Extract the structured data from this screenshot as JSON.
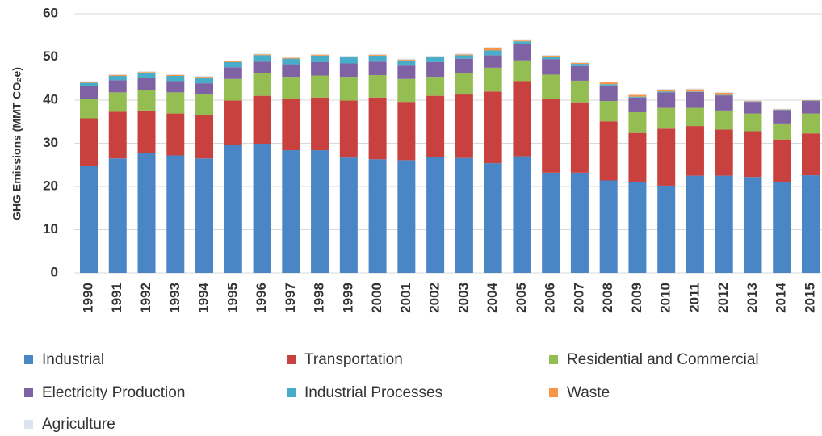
{
  "chart_data": {
    "type": "stacked_bar",
    "y_label": "GHG Emissions (MMT CO₂e)",
    "categories": [
      "1990",
      "1991",
      "1992",
      "1993",
      "1994",
      "1995",
      "1996",
      "1997",
      "1998",
      "1999",
      "2000",
      "2001",
      "2002",
      "2003",
      "2004",
      "2005",
      "2006",
      "2007",
      "2008",
      "2009",
      "2010",
      "2011",
      "2012",
      "2013",
      "2014",
      "2015"
    ],
    "series": [
      {
        "name": "Industrial",
        "color": "#4a85c6",
        "values": [
          24.8,
          26.5,
          27.7,
          27.2,
          26.5,
          29.6,
          29.9,
          28.4,
          28.4,
          26.7,
          26.3,
          26.1,
          26.9,
          26.6,
          25.4,
          27.0,
          23.2,
          23.2,
          21.4,
          21.1,
          20.2,
          22.5,
          22.5,
          22.2,
          21.0,
          22.6
        ]
      },
      {
        "name": "Transportation",
        "color": "#c9413f",
        "values": [
          11.0,
          10.8,
          9.9,
          9.7,
          10.1,
          10.3,
          11.1,
          11.9,
          12.2,
          13.2,
          14.3,
          13.5,
          14.1,
          14.7,
          16.6,
          17.4,
          17.1,
          16.3,
          13.7,
          11.3,
          13.2,
          11.5,
          10.7,
          10.6,
          9.9,
          9.7
        ]
      },
      {
        "name": "Residential and Commercial",
        "color": "#94bd52",
        "values": [
          4.4,
          4.5,
          4.7,
          4.9,
          4.8,
          5.0,
          5.2,
          5.1,
          5.1,
          5.5,
          5.2,
          5.3,
          4.4,
          5.0,
          5.5,
          4.8,
          5.6,
          5.0,
          4.7,
          4.8,
          4.8,
          4.2,
          4.4,
          4.1,
          3.7,
          4.6
        ]
      },
      {
        "name": "Electricity Production",
        "color": "#7f62a3",
        "values": [
          3.0,
          2.8,
          2.8,
          2.6,
          2.5,
          2.7,
          2.7,
          2.9,
          3.1,
          3.1,
          3.1,
          3.1,
          3.4,
          3.3,
          2.9,
          3.7,
          3.6,
          3.4,
          3.6,
          3.4,
          3.6,
          3.7,
          3.5,
          2.7,
          3.1,
          2.9
        ]
      },
      {
        "name": "Industrial Processes",
        "color": "#47adc8",
        "values": [
          0.8,
          1.0,
          1.2,
          1.2,
          1.3,
          1.2,
          1.5,
          1.3,
          1.5,
          1.4,
          1.4,
          1.2,
          1.1,
          0.8,
          1.1,
          0.7,
          0.6,
          0.5,
          0.3,
          0.2,
          0.2,
          0.1,
          0.1,
          0.1,
          0.1,
          0.1
        ]
      },
      {
        "name": "Waste",
        "color": "#f79646",
        "values": [
          0.2,
          0.2,
          0.2,
          0.2,
          0.2,
          0.2,
          0.2,
          0.2,
          0.2,
          0.2,
          0.2,
          0.2,
          0.2,
          0.2,
          0.5,
          0.2,
          0.2,
          0.2,
          0.4,
          0.4,
          0.4,
          0.5,
          0.5,
          0.1,
          0.1,
          0.1
        ]
      },
      {
        "name": "Agriculture",
        "color": "#dde3ee",
        "values": [
          0.2,
          0.2,
          0.2,
          0.2,
          0.2,
          0.2,
          0.2,
          0.2,
          0.2,
          0.2,
          0.2,
          0.2,
          0.2,
          0.2,
          0.3,
          0.3,
          0.2,
          0.2,
          0.2,
          0.2,
          0.2,
          0.2,
          0.2,
          0.1,
          0.1,
          0.1
        ]
      }
    ],
    "ylim": [
      0,
      60
    ],
    "yticks": [
      0,
      10,
      20,
      30,
      40,
      50,
      60
    ],
    "grid": true
  }
}
